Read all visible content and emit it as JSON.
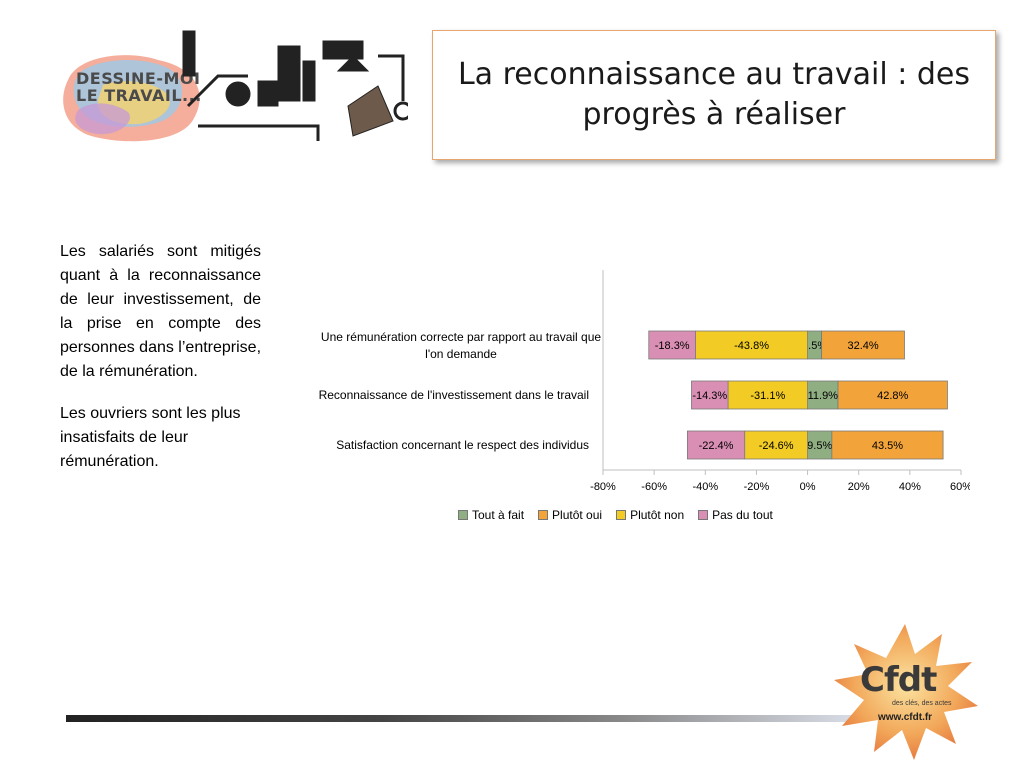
{
  "logo": {
    "text_line1": "DESSINE-MOI",
    "text_line2": "LE TRAVAIL..."
  },
  "title": "La reconnaissance au travail : des progrès à réaliser",
  "body": {
    "paragraph1": "Les salariés sont mitigés quant à la reconnaissance de leur investissement, de la prise en compte des personnes dans l’entreprise, de la rémunération.",
    "paragraph2": "Les ouvriers sont les plus insatisfaits de leur rémunération."
  },
  "chart_data": {
    "type": "bar",
    "orientation": "horizontal",
    "stacked": "diverging",
    "categories": [
      "Une rémunération correcte par rapport au travail que l'on demande",
      "Reconnaissance de l'investissement dans le travail",
      "Satisfaction concernant le respect des individus"
    ],
    "series": [
      {
        "name": "Tout à fait",
        "color": "#8fae82",
        "values": [
          5.5,
          11.9,
          9.5
        ],
        "labels": [
          "5.5%",
          "11.9%",
          "9.5%"
        ]
      },
      {
        "name": "Plutôt oui",
        "color": "#f2a33a",
        "values": [
          32.4,
          42.8,
          43.5
        ],
        "labels": [
          "32.4%",
          "42.8%",
          "43.5%"
        ]
      },
      {
        "name": "Plutôt non",
        "color": "#f2cc24",
        "values": [
          -43.8,
          -31.1,
          -24.6
        ],
        "labels": [
          "-43.8%",
          "-31.1%",
          "-24.6%"
        ]
      },
      {
        "name": "Pas du tout",
        "color": "#d98fb4",
        "values": [
          -18.3,
          -14.3,
          -22.4
        ],
        "labels": [
          "-18.3%",
          "-14.3%",
          "-22.4%"
        ]
      }
    ],
    "xlim": [
      -80,
      60
    ],
    "xticks": [
      "-80%",
      "-60%",
      "-40%",
      "-20%",
      "0%",
      "20%",
      "40%",
      "60%"
    ],
    "legend_position": "bottom",
    "grid": false
  },
  "footer": {
    "cfdt_logo_text": "Cfdt",
    "cfdt_tagline": "des clés, des actes",
    "cfdt_url": "www.cfdt.fr"
  }
}
